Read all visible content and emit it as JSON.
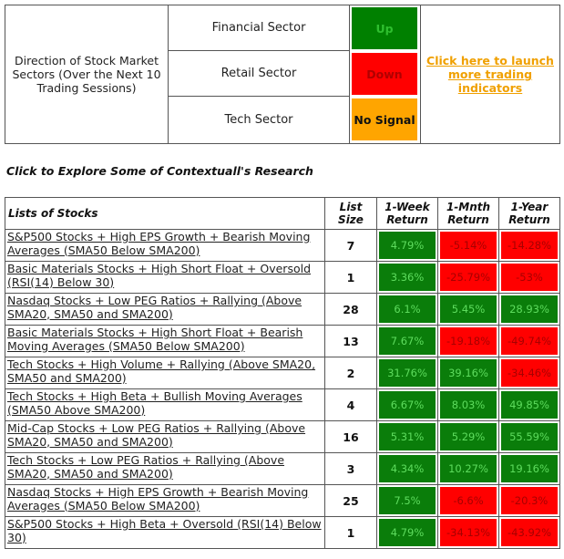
{
  "sector_panel": {
    "description": "Direction of Stock Market Sectors (Over the Next 10 Trading Sessions)",
    "sectors": [
      {
        "name": "Financial Sector",
        "signal": "Up",
        "bg": "#008000",
        "fg": "#2fbf2f"
      },
      {
        "name": "Retail Sector",
        "signal": "Down",
        "bg": "#ff0000",
        "fg": "#b00000"
      },
      {
        "name": "Tech Sector",
        "signal": "No Signal",
        "bg": "#ffa500",
        "fg": "#111111"
      }
    ],
    "launch_link": "Click here to launch more trading indicators",
    "link_color": "#f0a000"
  },
  "research_heading": "Click to Explore Some of Contextuall's Research",
  "table": {
    "headers": {
      "list": "Lists of Stocks",
      "size": "List Size",
      "week": "1-Week Return",
      "month": "1-Mnth Return",
      "year": "1-Year Return"
    },
    "rows": [
      {
        "name": "S&P500 Stocks + High EPS Growth + Bearish Moving Averages (SMA50 Below SMA200)",
        "size": "7",
        "week": "4.79%",
        "month": "-5.14%",
        "year": "-14.28%"
      },
      {
        "name": "Basic Materials Stocks + High Short Float + Oversold (RSI(14) Below 30)",
        "size": "1",
        "week": "3.36%",
        "month": "-25.79%",
        "year": "-53%"
      },
      {
        "name": "Nasdaq Stocks + Low PEG Ratios + Rallying (Above SMA20, SMA50 and SMA200)",
        "size": "28",
        "week": "6.1%",
        "month": "5.45%",
        "year": "28.93%"
      },
      {
        "name": "Basic Materials Stocks + High Short Float + Bearish Moving Averages (SMA50 Below SMA200)",
        "size": "13",
        "week": "7.67%",
        "month": "-19.18%",
        "year": "-49.74%"
      },
      {
        "name": "Tech Stocks + High Volume + Rallying (Above SMA20, SMA50 and SMA200)",
        "size": "2",
        "week": "31.76%",
        "month": "39.16%",
        "year": "-34.46%"
      },
      {
        "name": "Tech Stocks + High Beta + Bullish Moving Averages (SMA50 Above SMA200)",
        "size": "4",
        "week": "6.67%",
        "month": "8.03%",
        "year": "49.85%"
      },
      {
        "name": "Mid-Cap Stocks + Low PEG Ratios + Rallying (Above SMA20, SMA50 and SMA200)",
        "size": "16",
        "week": "5.31%",
        "month": "5.29%",
        "year": "55.59%"
      },
      {
        "name": "Tech Stocks + Low PEG Ratios + Rallying (Above SMA20, SMA50 and SMA200)",
        "size": "3",
        "week": "4.34%",
        "month": "10.27%",
        "year": "19.16%"
      },
      {
        "name": "Nasdaq Stocks + High EPS Growth + Bearish Moving Averages (SMA50 Below SMA200)",
        "size": "25",
        "week": "7.5%",
        "month": "-6.6%",
        "year": "-20.3%"
      },
      {
        "name": "S&P500 Stocks + High Beta + Oversold (RSI(14) Below 30)",
        "size": "1",
        "week": "4.79%",
        "month": "-34.13%",
        "year": "-43.92%"
      }
    ],
    "positive_color": "#0a7d0a",
    "negative_color": "#ff0000"
  }
}
